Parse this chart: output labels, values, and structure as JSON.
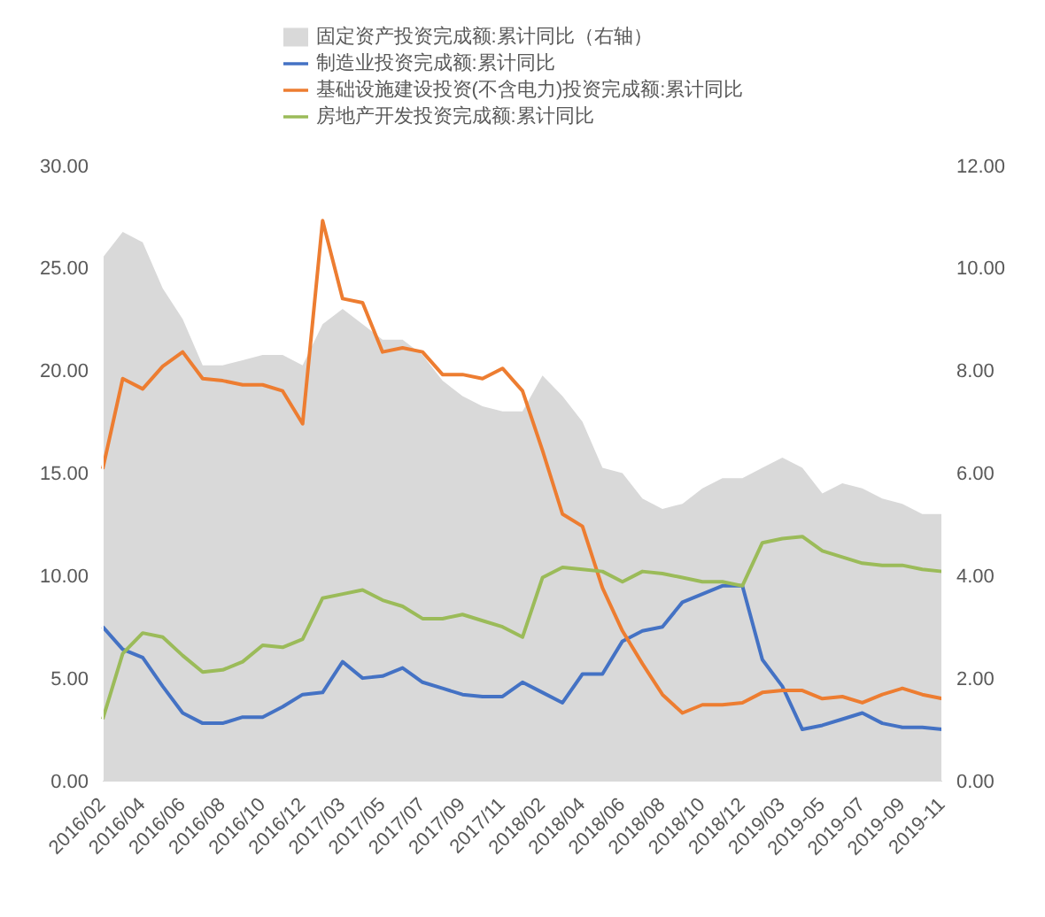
{
  "chart_data": {
    "type": "line",
    "categories": [
      "2016/02",
      null,
      "2016/04",
      null,
      "2016/06",
      null,
      "2016/08",
      null,
      "2016/10",
      null,
      "2016/12",
      null,
      "2017/03",
      null,
      "2017/05",
      null,
      "2017/07",
      null,
      "2017/09",
      null,
      "2017/11",
      null,
      "2018/02",
      null,
      "2018/04",
      null,
      "2018/06",
      null,
      "2018/08",
      null,
      "2018/10",
      null,
      "2018/12",
      null,
      "2019/03",
      null,
      "2019-05",
      null,
      "2019-07",
      null,
      "2019-09",
      null,
      "2019-11"
    ],
    "series": [
      {
        "name": "固定资产投资完成额:累计同比（右轴）",
        "type": "area",
        "axis": "y2",
        "color": "#d9d9d9",
        "values": [
          10.2,
          10.7,
          10.5,
          9.6,
          9.0,
          8.1,
          8.1,
          8.2,
          8.3,
          8.3,
          8.1,
          8.9,
          9.2,
          8.9,
          8.6,
          8.6,
          8.3,
          7.8,
          7.5,
          7.3,
          7.2,
          7.2,
          7.9,
          7.5,
          7.0,
          6.1,
          6.0,
          5.5,
          5.3,
          5.4,
          5.7,
          5.9,
          5.9,
          6.1,
          6.3,
          6.1,
          5.6,
          5.8,
          5.7,
          5.5,
          5.4,
          5.2,
          5.2
        ]
      },
      {
        "name": "制造业投资完成额:累计同比",
        "color": "#4472c4",
        "values": [
          7.5,
          6.4,
          6.0,
          4.6,
          3.3,
          2.8,
          2.8,
          3.1,
          3.1,
          3.6,
          4.2,
          4.3,
          5.8,
          5.0,
          5.1,
          5.5,
          4.8,
          4.5,
          4.2,
          4.1,
          4.1,
          4.8,
          4.3,
          3.8,
          5.2,
          5.2,
          6.8,
          7.3,
          7.5,
          8.7,
          9.1,
          9.5,
          9.5,
          5.9,
          4.6,
          2.5,
          2.7,
          3.0,
          3.3,
          2.8,
          2.6,
          2.6,
          2.5
        ]
      },
      {
        "name": "基础设施建设投资(不含电力)投资完成额:累计同比",
        "color": "#ed7d31",
        "values": [
          15.2,
          19.6,
          19.1,
          20.2,
          20.9,
          19.6,
          19.5,
          19.3,
          19.3,
          19.0,
          17.4,
          27.3,
          23.5,
          23.3,
          20.9,
          21.1,
          20.9,
          19.8,
          19.8,
          19.6,
          20.1,
          19.0,
          16.1,
          13.0,
          12.4,
          9.4,
          7.3,
          5.7,
          4.2,
          3.3,
          3.7,
          3.7,
          3.8,
          4.3,
          4.4,
          4.4,
          4.0,
          4.1,
          3.8,
          4.2,
          4.5,
          4.2,
          4.0
        ]
      },
      {
        "name": "房地产开发投资完成额:累计同比",
        "color": "#9bbb59",
        "values": [
          3.0,
          6.2,
          7.2,
          7.0,
          6.1,
          5.3,
          5.4,
          5.8,
          6.6,
          6.5,
          6.9,
          8.9,
          9.1,
          9.3,
          8.8,
          8.5,
          7.9,
          7.9,
          8.1,
          7.8,
          7.5,
          7.0,
          9.9,
          10.4,
          10.3,
          10.2,
          9.7,
          10.2,
          10.1,
          9.9,
          9.7,
          9.7,
          9.5,
          11.6,
          11.8,
          11.9,
          11.2,
          10.9,
          10.6,
          10.5,
          10.5,
          10.3,
          10.2
        ]
      }
    ],
    "ylim": [
      0,
      30
    ],
    "yticks": [
      {
        "value": 0,
        "label": "0.00"
      },
      {
        "value": 5,
        "label": "5.00"
      },
      {
        "value": 10,
        "label": "10.00"
      },
      {
        "value": 15,
        "label": "15.00"
      },
      {
        "value": 20,
        "label": "20.00"
      },
      {
        "value": 25,
        "label": "25.00"
      },
      {
        "value": 30,
        "label": "30.00"
      }
    ],
    "y2lim": [
      0,
      12
    ],
    "y2ticks": [
      {
        "value": 0,
        "label": "0.00"
      },
      {
        "value": 2,
        "label": "2.00"
      },
      {
        "value": 4,
        "label": "4.00"
      },
      {
        "value": 6,
        "label": "6.00"
      },
      {
        "value": 8,
        "label": "8.00"
      },
      {
        "value": 10,
        "label": "10.00"
      },
      {
        "value": 12,
        "label": "12.00"
      }
    ],
    "grid": false,
    "legend": "top",
    "marker": "none"
  }
}
